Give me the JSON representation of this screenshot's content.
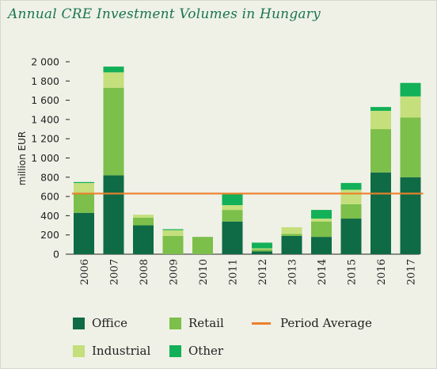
{
  "colors": {
    "office": "#0e6b45",
    "retail": "#7cbf4a",
    "industrial": "#c4df7c",
    "other": "#12b058",
    "period_average": "#ec7f2c",
    "title": "#1a7550",
    "axis": "#222222"
  },
  "chart_data": {
    "type": "bar",
    "stacked": true,
    "title": "Annual CRE Investment Volumes in Hungary",
    "ylabel": "million EUR",
    "xlabel": "",
    "ylim": [
      0,
      2000
    ],
    "yticks": [
      0,
      200,
      400,
      600,
      800,
      1000,
      1200,
      1400,
      1600,
      1800,
      2000
    ],
    "ytick_labels": [
      "0",
      "200",
      "400",
      "600",
      "800",
      "1 000",
      "1 200",
      "1 400",
      "1 600",
      "1 800",
      "2 000"
    ],
    "grid": false,
    "legend_position": "bottom",
    "categories": [
      "2006",
      "2007",
      "2008",
      "2009",
      "2010",
      "2011",
      "2012",
      "2013",
      "2014",
      "2015",
      "2016",
      "2017"
    ],
    "series": [
      {
        "name": "Office",
        "values": [
          430,
          820,
          300,
          0,
          0,
          340,
          30,
          190,
          180,
          370,
          850,
          800
        ]
      },
      {
        "name": "Retail",
        "values": [
          200,
          910,
          80,
          190,
          180,
          120,
          20,
          20,
          160,
          150,
          450,
          620
        ]
      },
      {
        "name": "Industrial",
        "values": [
          110,
          160,
          30,
          60,
          0,
          50,
          10,
          70,
          30,
          150,
          190,
          220
        ]
      },
      {
        "name": "Other",
        "values": [
          10,
          60,
          0,
          10,
          0,
          120,
          60,
          0,
          90,
          70,
          40,
          140
        ]
      }
    ],
    "reference_line": {
      "name": "Period Average",
      "value": 630
    }
  },
  "legend": [
    {
      "key": "office",
      "label": "Office",
      "kind": "swatch"
    },
    {
      "key": "retail",
      "label": "Retail",
      "kind": "swatch"
    },
    {
      "key": "period_average",
      "label": "Period Average",
      "kind": "line"
    },
    {
      "key": "industrial",
      "label": "Industrial",
      "kind": "swatch"
    },
    {
      "key": "other",
      "label": "Other",
      "kind": "swatch"
    }
  ]
}
